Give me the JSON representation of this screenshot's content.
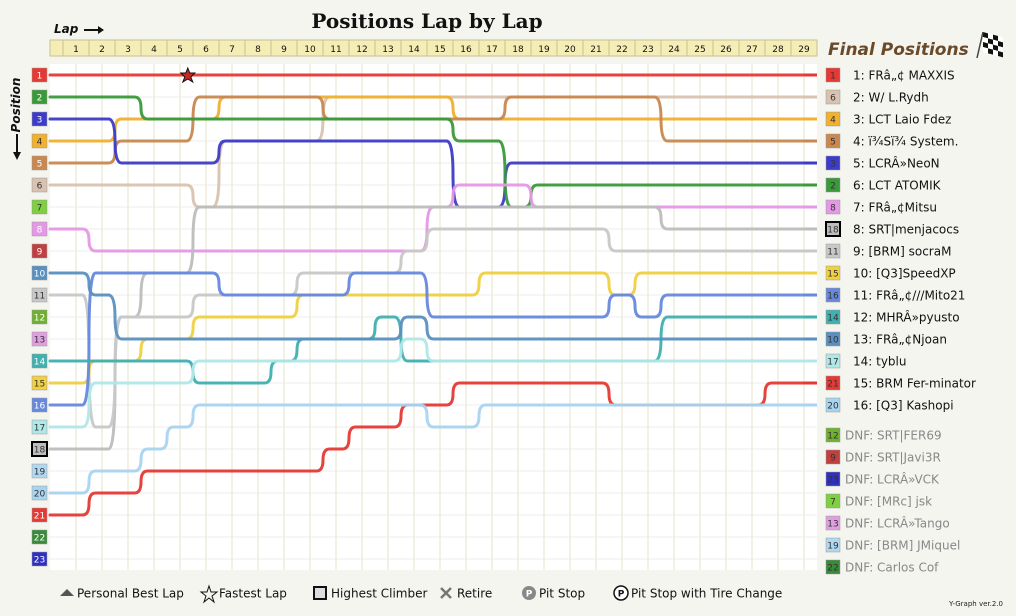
{
  "chart_data": {
    "type": "line",
    "title": "Positions Lap by Lap",
    "xlabel": "Lap",
    "ylabel": "Position",
    "x": [
      1,
      2,
      3,
      4,
      5,
      6,
      7,
      8,
      9,
      10,
      11,
      12,
      13,
      14,
      15,
      16,
      17,
      18,
      19,
      20,
      21,
      22,
      23,
      24,
      25,
      26,
      27,
      28,
      29
    ],
    "positions_axis": [
      1,
      2,
      3,
      4,
      5,
      6,
      7,
      8,
      9,
      10,
      11,
      12,
      13,
      14,
      15,
      16,
      17,
      18,
      19,
      20,
      21,
      22,
      23
    ],
    "final_positions_title": "Final Positions",
    "series": [
      {
        "num": "1",
        "label": "1: FRâ„¢ MAXXIS",
        "color": "#e53935",
        "start": 1,
        "values": [
          1,
          1,
          1,
          1,
          1,
          1,
          1,
          1,
          1,
          1,
          1,
          1,
          1,
          1,
          1,
          1,
          1,
          1,
          1,
          1,
          1,
          1,
          1,
          1,
          1,
          1,
          1,
          1,
          1
        ]
      },
      {
        "num": "6",
        "label": "2: W/ L.Rydh",
        "color": "#d9c3b0",
        "start": 6,
        "values": [
          6,
          6,
          6,
          6,
          6,
          7,
          4,
          4,
          4,
          4,
          2,
          2,
          2,
          2,
          2,
          2,
          2,
          2,
          2,
          2,
          2,
          2,
          2,
          2,
          2,
          2,
          2,
          2,
          2
        ]
      },
      {
        "num": "4",
        "label": "3: LCT Laio Fdez",
        "color": "#f0b030",
        "start": 4,
        "values": [
          4,
          4,
          3,
          3,
          3,
          3,
          2,
          2,
          2,
          2,
          2,
          2,
          2,
          2,
          2,
          3,
          3,
          3,
          3,
          3,
          3,
          3,
          3,
          3,
          3,
          3,
          3,
          3,
          3
        ]
      },
      {
        "num": "5",
        "label": "4: ï¾Sï¾ System.",
        "color": "#c88850",
        "start": 5,
        "values": [
          5,
          5,
          4,
          4,
          4,
          2,
          2,
          2,
          2,
          2,
          3,
          3,
          3,
          3,
          3,
          3,
          3,
          2,
          2,
          2,
          2,
          2,
          2,
          4,
          4,
          4,
          4,
          4,
          4
        ]
      },
      {
        "num": "3",
        "label": "5: LCRÂ»NeoN",
        "color": "#3c3cc8",
        "start": 3,
        "values": [
          3,
          3,
          5,
          5,
          5,
          5,
          4,
          4,
          4,
          4,
          4,
          4,
          4,
          4,
          4,
          7,
          7,
          5,
          5,
          5,
          5,
          5,
          5,
          5,
          5,
          5,
          5,
          5,
          5
        ]
      },
      {
        "num": "2",
        "label": "6: LCT ATOMIK",
        "color": "#3a9a3a",
        "start": 2,
        "values": [
          2,
          2,
          2,
          3,
          3,
          3,
          3,
          3,
          3,
          3,
          3,
          3,
          3,
          3,
          3,
          4,
          4,
          7,
          6,
          6,
          6,
          6,
          6,
          6,
          6,
          6,
          6,
          6,
          6
        ]
      },
      {
        "num": "8",
        "label": "7: FRâ„¢Mitsu",
        "color": "#e598e5",
        "start": 8,
        "values": [
          8,
          9,
          9,
          9,
          9,
          9,
          9,
          9,
          9,
          9,
          9,
          9,
          9,
          9,
          7,
          6,
          6,
          6,
          7,
          7,
          7,
          7,
          7,
          7,
          7,
          7,
          7,
          7,
          7
        ]
      },
      {
        "num": "18",
        "label": "8: SRT|menjacocs",
        "color": "#bdbdbd",
        "start": 18,
        "values": [
          18,
          18,
          12,
          10,
          10,
          7,
          7,
          7,
          7,
          7,
          7,
          7,
          7,
          7,
          7,
          7,
          7,
          7,
          7,
          7,
          7,
          7,
          7,
          8,
          8,
          8,
          8,
          8,
          8
        ]
      },
      {
        "num": "11",
        "label": "9: [BRM] socraM",
        "color": "#c8c8c8",
        "start": 11,
        "values": [
          11,
          17,
          12,
          12,
          12,
          11,
          11,
          11,
          11,
          10,
          10,
          10,
          10,
          9,
          8,
          8,
          8,
          8,
          8,
          8,
          8,
          9,
          9,
          9,
          9,
          9,
          9,
          9,
          9
        ]
      },
      {
        "num": "15",
        "label": "10: [Q3]SpeedXP",
        "color": "#f0d040",
        "start": 15,
        "values": [
          15,
          14,
          14,
          13,
          13,
          12,
          12,
          12,
          12,
          11,
          11,
          11,
          11,
          11,
          11,
          11,
          10,
          10,
          10,
          10,
          10,
          11,
          10,
          10,
          10,
          10,
          10,
          10,
          10
        ]
      },
      {
        "num": "16",
        "label": "11: FRâ„¢///Mito21",
        "color": "#6688dd",
        "start": 16,
        "values": [
          16,
          10,
          10,
          10,
          10,
          10,
          11,
          11,
          11,
          11,
          11,
          10,
          10,
          10,
          12,
          12,
          12,
          12,
          12,
          12,
          12,
          11,
          12,
          11,
          11,
          11,
          11,
          11,
          11
        ]
      },
      {
        "num": "14",
        "label": "12: MHRÂ»pyusto",
        "color": "#40b0b0",
        "start": 14,
        "values": [
          14,
          14,
          14,
          14,
          14,
          15,
          15,
          15,
          14,
          13,
          13,
          13,
          12,
          14,
          14,
          14,
          14,
          14,
          14,
          14,
          14,
          14,
          14,
          12,
          12,
          12,
          12,
          12,
          12
        ]
      },
      {
        "num": "10",
        "label": "13: FRâ„¢Njoan",
        "color": "#5a90c0",
        "start": 10,
        "values": [
          10,
          11,
          13,
          13,
          13,
          13,
          13,
          13,
          13,
          13,
          13,
          13,
          13,
          12,
          13,
          13,
          13,
          13,
          13,
          13,
          13,
          13,
          13,
          13,
          13,
          13,
          13,
          13,
          13
        ]
      },
      {
        "num": "17",
        "label": "14: tyblu",
        "color": "#b0e8e8",
        "start": 17,
        "values": [
          17,
          15,
          15,
          15,
          15,
          14,
          14,
          14,
          14,
          14,
          14,
          14,
          14,
          13,
          14,
          14,
          14,
          14,
          14,
          14,
          14,
          14,
          14,
          14,
          14,
          14,
          14,
          14,
          14
        ]
      },
      {
        "num": "21",
        "label": "15: BRM Fer-minator",
        "color": "#e53935",
        "start": 21,
        "values": [
          21,
          20,
          20,
          19,
          19,
          19,
          19,
          19,
          19,
          19,
          18,
          17,
          17,
          16,
          16,
          15,
          15,
          15,
          15,
          15,
          15,
          16,
          16,
          16,
          16,
          16,
          16,
          15,
          15
        ]
      },
      {
        "num": "20",
        "label": "16: [Q3] Kashopi",
        "color": "#a8d4f0",
        "start": 20,
        "values": [
          20,
          19,
          19,
          18,
          17,
          16,
          16,
          16,
          16,
          16,
          16,
          16,
          16,
          16,
          17,
          17,
          16,
          16,
          16,
          16,
          16,
          16,
          16,
          16,
          16,
          16,
          16,
          16,
          16
        ]
      }
    ],
    "dnf": [
      {
        "num": "12",
        "label": "DNF: SRT|FER69",
        "color": "#70b030"
      },
      {
        "num": "9",
        "label": "DNF: SRT|Javi3R",
        "color": "#c04040"
      },
      {
        "num": "23",
        "label": "DNF: LCRÂ»VCK",
        "color": "#3030c0"
      },
      {
        "num": "7",
        "label": "DNF: [MRc] jsk",
        "color": "#7ed040"
      },
      {
        "num": "13",
        "label": "DNF: LCRÂ»Tango",
        "color": "#e0a0e0"
      },
      {
        "num": "19",
        "label": "DNF: [BRM] JMiquel",
        "color": "#b0d8f0"
      },
      {
        "num": "22",
        "label": "DNF: Carlos Cof",
        "color": "#3a8a3a"
      }
    ],
    "start_colors": [
      "#e53935",
      "#3a9a3a",
      "#3c3cc8",
      "#f0b030",
      "#c88850",
      "#d9c3b0",
      "#7ed040",
      "#e598e5",
      "#c04040",
      "#5a90c0",
      "#c8c8c8",
      "#70b030",
      "#e0a0e0",
      "#40b0b0",
      "#f0d040",
      "#6688dd",
      "#b0e8e8",
      "#bdbdbd",
      "#b0d8f0",
      "#a8d4f0",
      "#e53935",
      "#3a8a3a",
      "#3030c0"
    ],
    "legend": [
      "Personal Best Lap",
      "Fastest Lap",
      "Highest Climber",
      "Retire",
      "Pit Stop",
      "Pit Stop with Tire Change"
    ],
    "version": "Y-Graph ver.2.0"
  }
}
